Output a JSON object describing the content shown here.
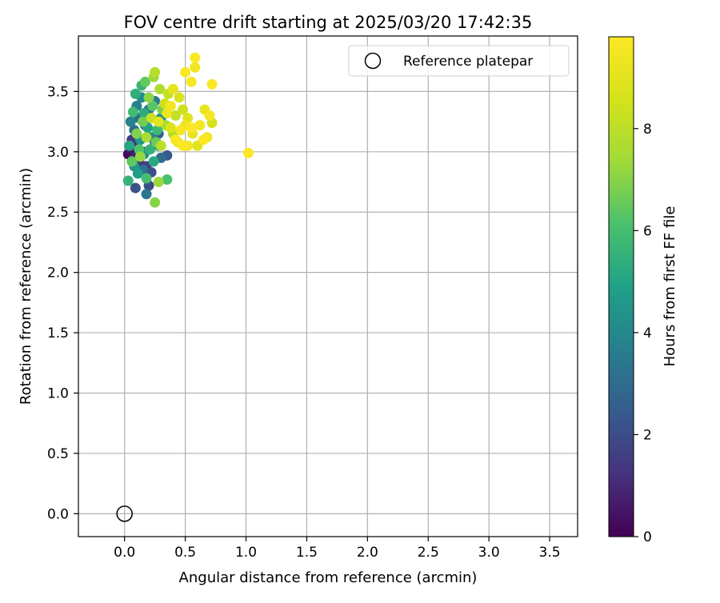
{
  "chart_data": {
    "type": "scatter",
    "title": "FOV centre drift starting at 2025/03/20 17:42:35",
    "xlabel": "Angular distance from reference (arcmin)",
    "ylabel": "Rotation from reference (arcmin)",
    "xlim": [
      -0.38,
      3.73
    ],
    "ylim": [
      -0.19,
      3.96
    ],
    "xticks": [
      "0.0",
      "0.5",
      "1.0",
      "1.5",
      "2.0",
      "2.5",
      "3.0",
      "3.5"
    ],
    "yticks": [
      "0.0",
      "0.5",
      "1.0",
      "1.5",
      "2.0",
      "2.5",
      "3.0",
      "3.5"
    ],
    "grid": true,
    "legend": {
      "placement": "top-right",
      "entries": [
        "Reference platepar"
      ]
    },
    "reference_point": {
      "x": 0.0,
      "y": 0.0,
      "label": "Reference platepar"
    },
    "colorbar": {
      "label": "Hours from first FF file",
      "colormap": "viridis",
      "range": [
        0,
        9.8
      ],
      "ticks": [
        "0",
        "2",
        "4",
        "6",
        "8"
      ]
    },
    "points": [
      {
        "x": 0.03,
        "y": 2.98,
        "h": 0.2
      },
      {
        "x": 0.05,
        "y": 3.02,
        "h": 0.5
      },
      {
        "x": 0.08,
        "y": 2.95,
        "h": 0.8
      },
      {
        "x": 0.1,
        "y": 3.05,
        "h": 1.0
      },
      {
        "x": 0.12,
        "y": 2.92,
        "h": 1.2
      },
      {
        "x": 0.06,
        "y": 3.1,
        "h": 1.4
      },
      {
        "x": 0.15,
        "y": 3.0,
        "h": 1.5
      },
      {
        "x": 0.18,
        "y": 2.88,
        "h": 1.7
      },
      {
        "x": 0.2,
        "y": 2.72,
        "h": 2.0
      },
      {
        "x": 0.22,
        "y": 2.83,
        "h": 2.1
      },
      {
        "x": 0.09,
        "y": 2.7,
        "h": 2.2
      },
      {
        "x": 0.25,
        "y": 3.08,
        "h": 2.3
      },
      {
        "x": 0.35,
        "y": 2.97,
        "h": 2.4
      },
      {
        "x": 0.28,
        "y": 3.15,
        "h": 2.6
      },
      {
        "x": 0.17,
        "y": 3.22,
        "h": 2.7
      },
      {
        "x": 0.12,
        "y": 3.28,
        "h": 2.9
      },
      {
        "x": 0.3,
        "y": 2.95,
        "h": 3.0
      },
      {
        "x": 0.08,
        "y": 3.18,
        "h": 3.1
      },
      {
        "x": 0.2,
        "y": 3.35,
        "h": 3.2
      },
      {
        "x": 0.15,
        "y": 2.85,
        "h": 3.3
      },
      {
        "x": 0.18,
        "y": 2.65,
        "h": 3.4
      },
      {
        "x": 0.25,
        "y": 3.42,
        "h": 3.6
      },
      {
        "x": 0.1,
        "y": 3.38,
        "h": 3.7
      },
      {
        "x": 0.05,
        "y": 3.25,
        "h": 3.8
      },
      {
        "x": 0.22,
        "y": 3.12,
        "h": 4.0
      },
      {
        "x": 0.14,
        "y": 3.45,
        "h": 4.1
      },
      {
        "x": 0.3,
        "y": 3.28,
        "h": 4.2
      },
      {
        "x": 0.16,
        "y": 2.98,
        "h": 4.4
      },
      {
        "x": 0.08,
        "y": 2.88,
        "h": 4.5
      },
      {
        "x": 0.13,
        "y": 3.1,
        "h": 4.6
      },
      {
        "x": 0.28,
        "y": 3.05,
        "h": 4.7
      },
      {
        "x": 0.11,
        "y": 2.82,
        "h": 4.8
      },
      {
        "x": 0.19,
        "y": 3.2,
        "h": 5.0
      },
      {
        "x": 0.04,
        "y": 3.05,
        "h": 5.1
      },
      {
        "x": 0.24,
        "y": 2.92,
        "h": 5.2
      },
      {
        "x": 0.16,
        "y": 3.32,
        "h": 5.3
      },
      {
        "x": 0.09,
        "y": 3.48,
        "h": 5.4
      },
      {
        "x": 0.21,
        "y": 3.02,
        "h": 5.5
      },
      {
        "x": 0.03,
        "y": 2.76,
        "h": 5.6
      },
      {
        "x": 0.14,
        "y": 3.55,
        "h": 5.7
      },
      {
        "x": 0.27,
        "y": 3.18,
        "h": 5.8
      },
      {
        "x": 0.07,
        "y": 3.33,
        "h": 5.9
      },
      {
        "x": 0.18,
        "y": 2.78,
        "h": 6.0
      },
      {
        "x": 0.35,
        "y": 2.77,
        "h": 6.1
      },
      {
        "x": 0.12,
        "y": 3.02,
        "h": 6.2
      },
      {
        "x": 0.23,
        "y": 3.38,
        "h": 6.3
      },
      {
        "x": 0.06,
        "y": 2.92,
        "h": 6.4
      },
      {
        "x": 0.17,
        "y": 3.58,
        "h": 6.5
      },
      {
        "x": 0.26,
        "y": 3.08,
        "h": 6.6
      },
      {
        "x": 0.15,
        "y": 3.25,
        "h": 6.7
      },
      {
        "x": 0.31,
        "y": 3.35,
        "h": 6.8
      },
      {
        "x": 0.1,
        "y": 3.15,
        "h": 6.9
      },
      {
        "x": 0.25,
        "y": 2.58,
        "h": 7.0
      },
      {
        "x": 0.2,
        "y": 3.45,
        "h": 7.1
      },
      {
        "x": 0.13,
        "y": 2.96,
        "h": 7.2
      },
      {
        "x": 0.28,
        "y": 2.75,
        "h": 7.3
      },
      {
        "x": 0.24,
        "y": 3.62,
        "h": 7.4
      },
      {
        "x": 0.34,
        "y": 3.22,
        "h": 7.5
      },
      {
        "x": 0.18,
        "y": 3.12,
        "h": 7.6
      },
      {
        "x": 0.29,
        "y": 3.52,
        "h": 7.7
      },
      {
        "x": 0.4,
        "y": 3.15,
        "h": 7.8
      },
      {
        "x": 0.25,
        "y": 3.66,
        "h": 7.9
      },
      {
        "x": 0.3,
        "y": 3.05,
        "h": 8.0
      },
      {
        "x": 0.42,
        "y": 3.3,
        "h": 8.1
      },
      {
        "x": 0.36,
        "y": 3.48,
        "h": 8.2
      },
      {
        "x": 0.22,
        "y": 3.28,
        "h": 8.3
      },
      {
        "x": 0.48,
        "y": 3.35,
        "h": 8.4
      },
      {
        "x": 0.33,
        "y": 3.4,
        "h": 8.5
      },
      {
        "x": 0.72,
        "y": 3.24,
        "h": 8.6
      },
      {
        "x": 0.45,
        "y": 3.45,
        "h": 8.7
      },
      {
        "x": 0.38,
        "y": 3.2,
        "h": 8.8
      },
      {
        "x": 0.52,
        "y": 3.28,
        "h": 8.9
      },
      {
        "x": 0.28,
        "y": 3.25,
        "h": 9.0
      },
      {
        "x": 0.6,
        "y": 3.05,
        "h": 9.0
      },
      {
        "x": 0.4,
        "y": 3.52,
        "h": 9.1
      },
      {
        "x": 0.56,
        "y": 3.15,
        "h": 9.1
      },
      {
        "x": 0.44,
        "y": 3.08,
        "h": 9.2
      },
      {
        "x": 0.66,
        "y": 3.35,
        "h": 9.2
      },
      {
        "x": 0.5,
        "y": 3.22,
        "h": 9.3
      },
      {
        "x": 0.35,
        "y": 3.32,
        "h": 9.3
      },
      {
        "x": 0.58,
        "y": 3.7,
        "h": 9.4
      },
      {
        "x": 0.68,
        "y": 3.12,
        "h": 9.4
      },
      {
        "x": 0.52,
        "y": 3.05,
        "h": 9.5
      },
      {
        "x": 0.38,
        "y": 3.38,
        "h": 9.5
      },
      {
        "x": 0.62,
        "y": 3.22,
        "h": 9.5
      },
      {
        "x": 0.55,
        "y": 3.58,
        "h": 9.6
      },
      {
        "x": 0.7,
        "y": 3.3,
        "h": 9.6
      },
      {
        "x": 0.46,
        "y": 3.18,
        "h": 9.6
      },
      {
        "x": 0.58,
        "y": 3.78,
        "h": 9.7
      },
      {
        "x": 0.5,
        "y": 3.66,
        "h": 9.7
      },
      {
        "x": 0.42,
        "y": 3.1,
        "h": 9.7
      },
      {
        "x": 0.72,
        "y": 3.56,
        "h": 9.7
      },
      {
        "x": 0.65,
        "y": 3.1,
        "h": 9.8
      },
      {
        "x": 1.02,
        "y": 2.99,
        "h": 9.8
      },
      {
        "x": 0.48,
        "y": 3.05,
        "h": 9.8
      },
      {
        "x": 0.55,
        "y": 3.2,
        "h": 9.8
      }
    ]
  }
}
